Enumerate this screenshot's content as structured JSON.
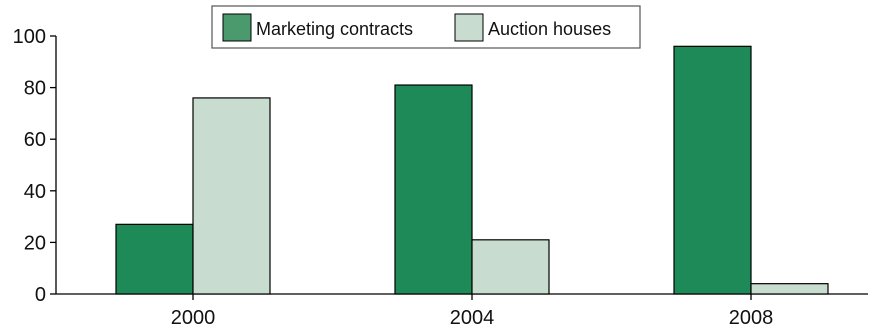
{
  "chart_data": {
    "type": "bar",
    "categories": [
      "2000",
      "2004",
      "2008"
    ],
    "series": [
      {
        "name": "Marketing contracts",
        "values": [
          27,
          81,
          96
        ],
        "color": "#1e8a57",
        "legend_color": "#4a9a6e"
      },
      {
        "name": "Auction houses",
        "values": [
          76,
          21,
          4
        ],
        "color": "#c8dccf",
        "legend_color": "#c8dccf"
      }
    ],
    "ylim": [
      0,
      100
    ],
    "yticks": [
      0,
      20,
      40,
      60,
      80,
      100
    ],
    "grid": false,
    "legend_position": "top-center",
    "title": "",
    "xlabel": "",
    "ylabel": ""
  }
}
